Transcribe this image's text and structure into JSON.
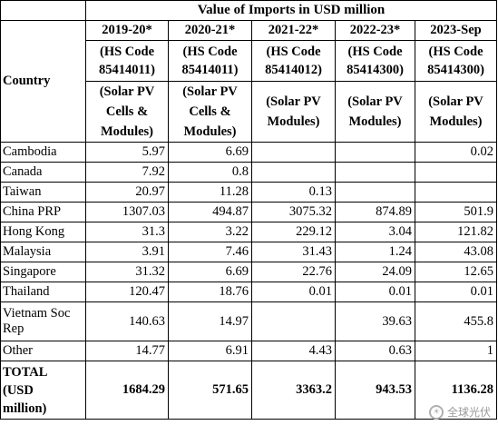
{
  "table": {
    "title": "Value of Imports in USD million",
    "country_header": "Country",
    "columns": [
      {
        "year": "2019-20*",
        "code": [
          "(HS Code",
          "85414011)"
        ],
        "product": [
          "(Solar PV",
          "Cells &",
          "Modules)"
        ]
      },
      {
        "year": "2020-21*",
        "code": [
          "(HS Code",
          "85414011)"
        ],
        "product": [
          "(Solar PV",
          "Cells &",
          "Modules)"
        ]
      },
      {
        "year": "2021-22*",
        "code": [
          "(HS Code",
          "85414012)"
        ],
        "product": [
          "(Solar PV",
          "Modules)"
        ]
      },
      {
        "year": "2022-23*",
        "code": [
          "(HS Code",
          "85414300)"
        ],
        "product": [
          "(Solar PV",
          "Modules)"
        ]
      },
      {
        "year": "2023-Sep",
        "code": [
          "(HS Code",
          "85414300)"
        ],
        "product": [
          "(Solar PV",
          "Modules)"
        ]
      }
    ],
    "rows": [
      {
        "country": "Cambodia",
        "values": [
          "5.97",
          "6.69",
          "",
          "",
          "0.02"
        ]
      },
      {
        "country": "Canada",
        "values": [
          "7.92",
          "0.8",
          "",
          "",
          ""
        ]
      },
      {
        "country": "Taiwan",
        "values": [
          "20.97",
          "11.28",
          "0.13",
          "",
          ""
        ]
      },
      {
        "country": "China PRP",
        "values": [
          "1307.03",
          "494.87",
          "3075.32",
          "874.89",
          "501.9"
        ]
      },
      {
        "country": "Hong Kong",
        "values": [
          "31.3",
          "3.22",
          "229.12",
          "3.04",
          "121.82"
        ]
      },
      {
        "country": "Malaysia",
        "values": [
          "3.91",
          "7.46",
          "31.43",
          "1.24",
          "43.08"
        ]
      },
      {
        "country": "Singapore",
        "values": [
          "31.32",
          "6.69",
          "22.76",
          "24.09",
          "12.65"
        ]
      },
      {
        "country": "Thailand",
        "values": [
          "120.47",
          "18.76",
          "0.01",
          "0.01",
          "0.01"
        ]
      },
      {
        "country": "Vietnam Soc Rep",
        "values": [
          "140.63",
          "14.97",
          "",
          "39.63",
          "455.8"
        ]
      },
      {
        "country": "Other",
        "values": [
          "14.77",
          "6.91",
          "4.43",
          "0.63",
          "1"
        ]
      }
    ],
    "total": {
      "label_lines": [
        "TOTAL",
        "(USD",
        "million)"
      ],
      "values": [
        "1684.29",
        "571.65",
        "3363.2",
        "943.53",
        "1136.28"
      ]
    }
  },
  "watermark": {
    "text": "全球光伏",
    "logo_icon": "sun-logo-icon"
  }
}
